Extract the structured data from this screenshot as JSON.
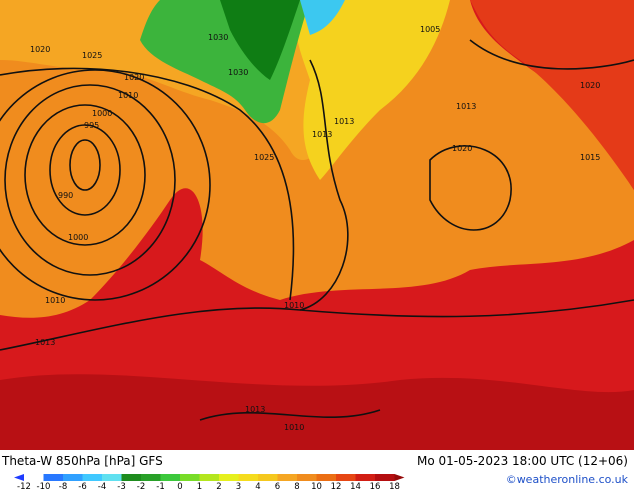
{
  "map": {
    "title": "Theta-W 850hPa [hPa] GFS",
    "datetime": "Mo 01-05-2023 18:00 UTC (12+06)",
    "credit": "©weatheronline.co.uk",
    "isobar_labels": [
      "1020",
      "1025",
      "1020",
      "1010",
      "1000",
      "995",
      "990",
      "1000",
      "1010",
      "1013",
      "1030",
      "1030",
      "1025",
      "1013",
      "1013",
      "1005",
      "1020",
      "1013",
      "1020",
      "1015",
      "1010",
      "1013",
      "1010"
    ],
    "legend": {
      "ticks": [
        -12,
        -10,
        -8,
        -6,
        -4,
        -3,
        -2,
        -1,
        0,
        1,
        2,
        3,
        4,
        6,
        8,
        10,
        12,
        14,
        16,
        18
      ],
      "colors": [
        "#1e3cff",
        "#2878ff",
        "#30a0ff",
        "#40c8ff",
        "#60e0f0",
        "#1e8c1e",
        "#28a028",
        "#3cc83c",
        "#78dc28",
        "#b4e61e",
        "#e6f01e",
        "#f5dc1e",
        "#f5c81e",
        "#f5a623",
        "#f08c1e",
        "#eb6e14",
        "#e64614",
        "#d21e14",
        "#b40e10",
        "#960a0a"
      ]
    }
  }
}
